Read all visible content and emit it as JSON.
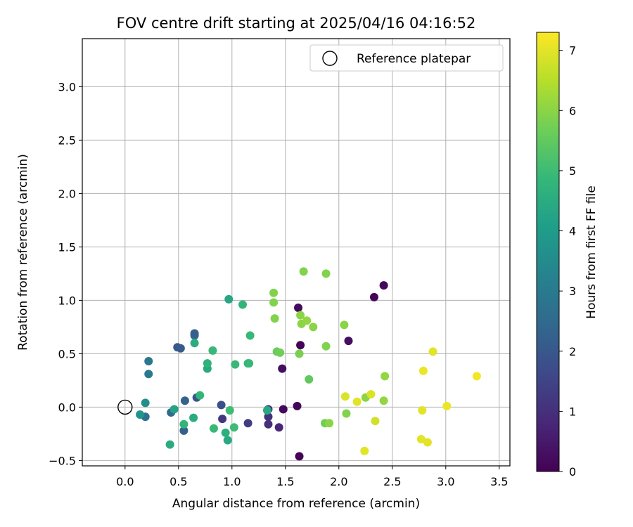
{
  "chart_data": {
    "type": "scatter",
    "title": "FOV centre drift starting at 2025/04/16 04:16:52",
    "xlabel": "Angular distance from reference (arcmin)",
    "ylabel": "Rotation from reference (arcmin)",
    "xlim": [
      -0.4,
      3.6
    ],
    "ylim": [
      -0.55,
      3.45
    ],
    "xticks": [
      0.0,
      0.5,
      1.0,
      1.5,
      2.0,
      2.5,
      3.0,
      3.5
    ],
    "xtick_labels": [
      "0.0",
      "0.5",
      "1.0",
      "1.5",
      "2.0",
      "2.5",
      "3.0",
      "3.5"
    ],
    "yticks": [
      -0.5,
      0.0,
      0.5,
      1.0,
      1.5,
      2.0,
      2.5,
      3.0
    ],
    "ytick_labels": [
      "−0.5",
      "0.0",
      "0.5",
      "1.0",
      "1.5",
      "2.0",
      "2.5",
      "3.0"
    ],
    "grid": true,
    "legend": {
      "position": "upper right",
      "entries": [
        {
          "label": "Reference platepar",
          "marker": "open-circle"
        }
      ]
    },
    "reference_point": {
      "x": 0.0,
      "y": 0.0
    },
    "colorbar": {
      "label": "Hours from first FF file",
      "colormap": "viridis",
      "range": [
        0,
        7.3
      ],
      "ticks": [
        0,
        1,
        2,
        3,
        4,
        5,
        6,
        7
      ],
      "tick_labels": [
        "0",
        "1",
        "2",
        "3",
        "4",
        "5",
        "6",
        "7"
      ]
    },
    "points": [
      {
        "x": 1.63,
        "y": -0.46,
        "c": 0.05
      },
      {
        "x": 1.61,
        "y": 0.01,
        "c": 0.1
      },
      {
        "x": 1.48,
        "y": -0.02,
        "c": 0.15
      },
      {
        "x": 1.64,
        "y": 0.58,
        "c": 0.05
      },
      {
        "x": 1.62,
        "y": 0.93,
        "c": 0.2
      },
      {
        "x": 1.47,
        "y": 0.36,
        "c": 0.25
      },
      {
        "x": 2.09,
        "y": 0.62,
        "c": 0.3
      },
      {
        "x": 2.33,
        "y": 1.03,
        "c": 0.1
      },
      {
        "x": 2.42,
        "y": 1.14,
        "c": 0.15
      },
      {
        "x": 1.44,
        "y": -0.19,
        "c": 0.8
      },
      {
        "x": 1.34,
        "y": -0.16,
        "c": 1.0
      },
      {
        "x": 1.34,
        "y": -0.09,
        "c": 1.05
      },
      {
        "x": 1.34,
        "y": -0.02,
        "c": 1.1
      },
      {
        "x": 1.15,
        "y": -0.15,
        "c": 1.3
      },
      {
        "x": 0.91,
        "y": -0.11,
        "c": 1.2
      },
      {
        "x": 0.9,
        "y": 0.02,
        "c": 1.8
      },
      {
        "x": 0.67,
        "y": 0.09,
        "c": 1.9
      },
      {
        "x": 0.55,
        "y": -0.22,
        "c": 2.2
      },
      {
        "x": 0.56,
        "y": 0.06,
        "c": 2.3
      },
      {
        "x": 0.43,
        "y": -0.05,
        "c": 2.5
      },
      {
        "x": 0.49,
        "y": 0.56,
        "c": 2.0
      },
      {
        "x": 0.52,
        "y": 0.55,
        "c": 2.1
      },
      {
        "x": 0.65,
        "y": 0.67,
        "c": 2.4
      },
      {
        "x": 0.65,
        "y": 0.69,
        "c": 2.2
      },
      {
        "x": 0.19,
        "y": -0.09,
        "c": 2.7
      },
      {
        "x": 0.22,
        "y": 0.43,
        "c": 2.9
      },
      {
        "x": 0.22,
        "y": 0.31,
        "c": 3.0
      },
      {
        "x": 0.19,
        "y": 0.04,
        "c": 3.6
      },
      {
        "x": 0.14,
        "y": -0.07,
        "c": 3.8
      },
      {
        "x": 0.46,
        "y": -0.02,
        "c": 4.2
      },
      {
        "x": 0.42,
        "y": -0.35,
        "c": 4.5
      },
      {
        "x": 0.55,
        "y": -0.16,
        "c": 4.8
      },
      {
        "x": 0.64,
        "y": -0.1,
        "c": 4.5
      },
      {
        "x": 0.7,
        "y": 0.11,
        "c": 4.8
      },
      {
        "x": 0.65,
        "y": 0.6,
        "c": 4.5
      },
      {
        "x": 0.77,
        "y": 0.36,
        "c": 4.4
      },
      {
        "x": 0.77,
        "y": 0.41,
        "c": 4.7
      },
      {
        "x": 0.82,
        "y": 0.53,
        "c": 4.9
      },
      {
        "x": 0.83,
        "y": -0.2,
        "c": 4.9
      },
      {
        "x": 0.94,
        "y": -0.24,
        "c": 4.6
      },
      {
        "x": 0.96,
        "y": -0.31,
        "c": 4.4
      },
      {
        "x": 0.98,
        "y": -0.03,
        "c": 5.0
      },
      {
        "x": 1.02,
        "y": -0.19,
        "c": 5.0
      },
      {
        "x": 0.97,
        "y": 1.01,
        "c": 4.3
      },
      {
        "x": 1.03,
        "y": 0.4,
        "c": 4.9
      },
      {
        "x": 1.1,
        "y": 0.96,
        "c": 4.8
      },
      {
        "x": 1.15,
        "y": 0.41,
        "c": 4.6
      },
      {
        "x": 1.16,
        "y": 0.41,
        "c": 4.9
      },
      {
        "x": 1.17,
        "y": 0.67,
        "c": 4.9
      },
      {
        "x": 1.33,
        "y": -0.03,
        "c": 4.4
      },
      {
        "x": 1.39,
        "y": 1.07,
        "c": 5.9
      },
      {
        "x": 1.39,
        "y": 0.98,
        "c": 5.9
      },
      {
        "x": 1.4,
        "y": 0.83,
        "c": 5.9
      },
      {
        "x": 1.42,
        "y": 0.52,
        "c": 5.6
      },
      {
        "x": 1.45,
        "y": 0.51,
        "c": 5.7
      },
      {
        "x": 1.63,
        "y": 0.5,
        "c": 5.8
      },
      {
        "x": 1.64,
        "y": 0.86,
        "c": 6.0
      },
      {
        "x": 1.65,
        "y": 0.78,
        "c": 6.0
      },
      {
        "x": 1.7,
        "y": 0.81,
        "c": 6.1
      },
      {
        "x": 1.67,
        "y": 1.27,
        "c": 5.9
      },
      {
        "x": 1.72,
        "y": 0.26,
        "c": 5.5
      },
      {
        "x": 1.76,
        "y": 0.75,
        "c": 6.0
      },
      {
        "x": 1.87,
        "y": -0.15,
        "c": 5.7
      },
      {
        "x": 1.91,
        "y": -0.15,
        "c": 6.0
      },
      {
        "x": 1.88,
        "y": 1.25,
        "c": 5.9
      },
      {
        "x": 1.88,
        "y": 0.57,
        "c": 5.9
      },
      {
        "x": 2.05,
        "y": 0.77,
        "c": 6.0
      },
      {
        "x": 2.07,
        "y": -0.06,
        "c": 5.9
      },
      {
        "x": 2.25,
        "y": 0.09,
        "c": 6.0
      },
      {
        "x": 2.42,
        "y": 0.06,
        "c": 6.1
      },
      {
        "x": 2.43,
        "y": 0.29,
        "c": 6.1
      },
      {
        "x": 2.06,
        "y": 0.1,
        "c": 6.9
      },
      {
        "x": 2.17,
        "y": 0.05,
        "c": 7.0
      },
      {
        "x": 2.24,
        "y": -0.41,
        "c": 7.0
      },
      {
        "x": 2.3,
        "y": 0.12,
        "c": 6.9
      },
      {
        "x": 2.34,
        "y": -0.13,
        "c": 6.8
      },
      {
        "x": 2.77,
        "y": -0.3,
        "c": 7.0
      },
      {
        "x": 2.78,
        "y": -0.03,
        "c": 7.0
      },
      {
        "x": 2.79,
        "y": 0.34,
        "c": 7.1
      },
      {
        "x": 2.83,
        "y": -0.33,
        "c": 7.0
      },
      {
        "x": 2.88,
        "y": 0.52,
        "c": 7.0
      },
      {
        "x": 3.01,
        "y": 0.01,
        "c": 7.1
      },
      {
        "x": 3.29,
        "y": 0.29,
        "c": 7.2
      }
    ]
  }
}
